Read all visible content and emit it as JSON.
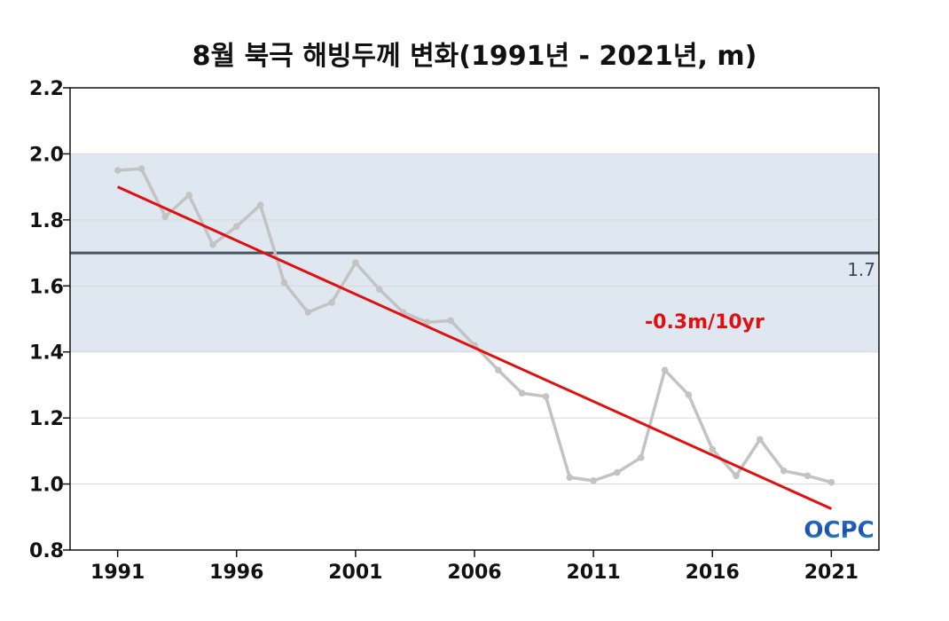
{
  "chart_data": {
    "type": "line",
    "title": "8월 북극 해빙두께 변화(1991년 - 2021년, m)",
    "xlabel": "",
    "ylabel": "",
    "xlim": [
      1989,
      2023
    ],
    "ylim": [
      0.8,
      2.2
    ],
    "x_ticks": [
      "1991",
      "1996",
      "2001",
      "2006",
      "2011",
      "2016",
      "2021"
    ],
    "y_ticks": [
      "0.8",
      "1.0",
      "1.2",
      "1.4",
      "1.6",
      "1.8",
      "2.0",
      "2.2"
    ],
    "grid": true,
    "shaded_band": [
      1.4,
      2.0
    ],
    "reference_line": {
      "value": 1.7,
      "label": "1.7"
    },
    "trend": {
      "label": "-0.3m/10yr",
      "start": [
        1991,
        1.9
      ],
      "end": [
        2021,
        0.925
      ]
    },
    "series": [
      {
        "x": [
          1991,
          1992,
          1993,
          1994,
          1995,
          1996,
          1997,
          1998,
          1999,
          2000,
          2001,
          2002,
          2003,
          2004,
          2005,
          2006,
          2007,
          2008,
          2009,
          2010,
          2011,
          2012,
          2013,
          2014,
          2015,
          2016,
          2017,
          2018,
          2019,
          2020,
          2021
        ],
        "values": [
          1.95,
          1.955,
          1.81,
          1.875,
          1.725,
          1.78,
          1.845,
          1.61,
          1.52,
          1.55,
          1.67,
          1.59,
          1.52,
          1.49,
          1.495,
          1.42,
          1.345,
          1.275,
          1.265,
          1.02,
          1.01,
          1.035,
          1.08,
          1.345,
          1.27,
          1.105,
          1.025,
          1.135,
          1.04,
          1.025,
          1.005
        ]
      }
    ],
    "colors": {
      "series": "#c3c3c3",
      "trend": "#e01010",
      "reference": "#4a5563",
      "band": "#dfe8f1",
      "label_red": "#e01010"
    }
  },
  "logo": {
    "text": "OCPC"
  }
}
